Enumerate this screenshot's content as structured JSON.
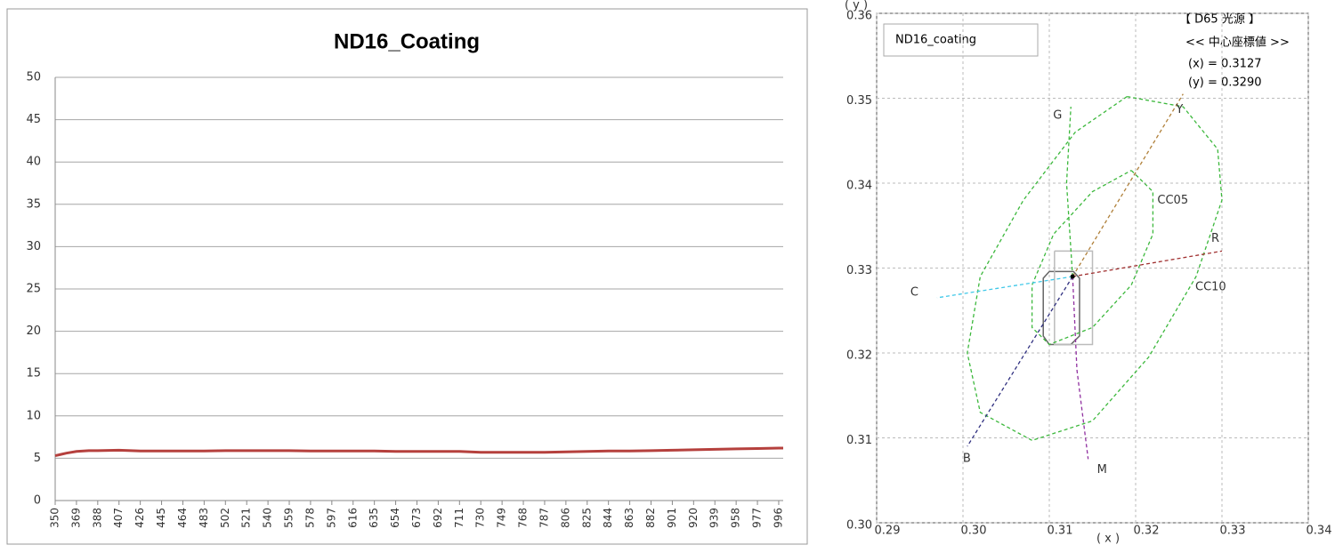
{
  "chart_data": [
    {
      "type": "line",
      "title": "ND16_Coating",
      "x": [
        350,
        355,
        360,
        369,
        380,
        388,
        407,
        426,
        445,
        464,
        483,
        502,
        521,
        540,
        559,
        578,
        597,
        616,
        635,
        654,
        673,
        692,
        711,
        730,
        749,
        768,
        787,
        806,
        825,
        844,
        863,
        882,
        901,
        920,
        939,
        958,
        977,
        996,
        1000
      ],
      "series": [
        {
          "color": "#b5403d",
          "values": [
            5.3,
            5.45,
            5.6,
            5.8,
            5.9,
            5.9,
            5.95,
            5.85,
            5.85,
            5.85,
            5.85,
            5.9,
            5.9,
            5.9,
            5.9,
            5.85,
            5.85,
            5.85,
            5.85,
            5.8,
            5.8,
            5.8,
            5.8,
            5.7,
            5.7,
            5.7,
            5.7,
            5.75,
            5.8,
            5.85,
            5.85,
            5.9,
            5.95,
            6.0,
            6.05,
            6.1,
            6.15,
            6.2,
            6.2
          ]
        }
      ],
      "xlim": [
        350,
        1000
      ],
      "xticks": [
        350,
        369,
        388,
        407,
        426,
        445,
        464,
        483,
        502,
        521,
        540,
        559,
        578,
        597,
        616,
        635,
        654,
        673,
        692,
        711,
        730,
        749,
        768,
        787,
        806,
        825,
        844,
        863,
        882,
        901,
        920,
        939,
        958,
        977,
        996
      ],
      "ylim": [
        0,
        50
      ],
      "yticks": [
        0,
        5,
        10,
        15,
        20,
        25,
        30,
        35,
        40,
        45,
        50
      ],
      "grid": true
    },
    {
      "type": "xy",
      "x_label": "( x )",
      "y_label": "( y )",
      "annotations": [
        "【 D65 光源 】",
        "<< 中心座標値 >>",
        "(x) = 0.3127",
        "(y) = 0.3290"
      ],
      "xlim": [
        0.29,
        0.34
      ],
      "xticks": [
        0.29,
        {
          "value": 0.3,
          "label": "0.30"
        },
        0.31,
        0.32,
        0.33,
        0.34
      ],
      "ylim": [
        0.3,
        0.36
      ],
      "yticks": [
        {
          "value": 0.3,
          "label": "0.30"
        },
        0.31,
        0.32,
        0.33,
        0.34,
        0.35,
        0.36
      ],
      "grid": true,
      "series": [
        {
          "name": "ND16_coating",
          "color": "#666666",
          "x": [
            0.31,
            0.3128,
            0.3135,
            0.3135,
            0.3125,
            0.31,
            0.3093,
            0.3093,
            0.31
          ],
          "y": [
            0.3296,
            0.3296,
            0.3288,
            0.322,
            0.321,
            0.321,
            0.322,
            0.3288,
            0.3296
          ]
        },
        {
          "color": "#bbbbbb",
          "x": [
            0.3106,
            0.315,
            0.315,
            0.3106,
            0.3106
          ],
          "y": [
            0.332,
            0.332,
            0.321,
            0.321,
            0.332
          ]
        },
        {
          "name": "CC05",
          "color": "#3cb83c",
          "x": [
            0.3195,
            0.322,
            0.322,
            0.3195,
            0.315,
            0.31,
            0.308,
            0.308,
            0.3105,
            0.315,
            0.3195
          ],
          "y": [
            0.3415,
            0.339,
            0.334,
            0.328,
            0.323,
            0.321,
            0.323,
            0.328,
            0.334,
            0.339,
            0.3415
          ]
        },
        {
          "name": "CC10",
          "color": "#3cb83c",
          "x": [
            0.319,
            0.3255,
            0.3295,
            0.33,
            0.327,
            0.3215,
            0.315,
            0.308,
            0.302,
            0.3005,
            0.302,
            0.307,
            0.313,
            0.319
          ],
          "y": [
            0.3502,
            0.349,
            0.344,
            0.338,
            0.329,
            0.3195,
            0.312,
            0.3097,
            0.313,
            0.32,
            0.329,
            0.338,
            0.346,
            0.3502
          ]
        },
        {
          "name": "G",
          "color": "#3cb83c",
          "x": [
            0.3127,
            0.312,
            0.3125
          ],
          "y": [
            0.329,
            0.34,
            0.349
          ]
        },
        {
          "name": "R",
          "color": "#a03030",
          "x": [
            0.3127,
            0.33
          ],
          "y": [
            0.329,
            0.332
          ]
        },
        {
          "name": "Y",
          "color": "#b0803a",
          "x": [
            0.3127,
            0.3255
          ],
          "y": [
            0.329,
            0.3505
          ]
        },
        {
          "name": "C",
          "color": "#40c8e8",
          "x": [
            0.3127,
            0.297
          ],
          "y": [
            0.329,
            0.3265
          ]
        },
        {
          "name": "B",
          "color": "#303080",
          "x": [
            0.3127,
            0.3005
          ],
          "y": [
            0.329,
            0.309
          ]
        },
        {
          "name": "M",
          "color": "#9030a0",
          "x": [
            0.3127,
            0.3132,
            0.3145
          ],
          "y": [
            0.329,
            0.318,
            0.3075
          ]
        },
        {
          "color": "#000000",
          "marker": true,
          "x": [
            0.3127
          ],
          "y": [
            0.329
          ]
        }
      ]
    }
  ]
}
